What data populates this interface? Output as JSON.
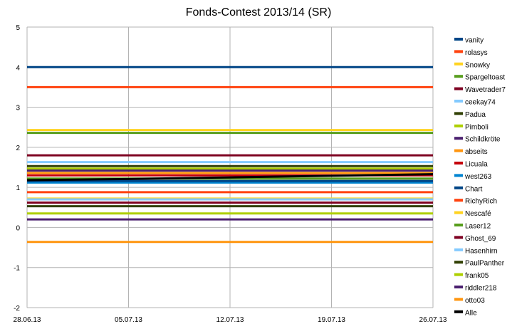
{
  "chart_data": {
    "type": "line",
    "title": "Fonds-Contest 2013/14 (SR)",
    "xlabel": "",
    "ylabel": "",
    "x_ticks": [
      "28.06.13",
      "05.07.13",
      "12.07.13",
      "19.07.13",
      "26.07.13"
    ],
    "ylim": [
      -2,
      5
    ],
    "y_ticks": [
      "-2",
      "-1",
      "0",
      "1",
      "2",
      "3",
      "4",
      "5"
    ],
    "grid": true,
    "legend_position": "right",
    "series": [
      {
        "name": "vanity",
        "color": "#004586",
        "values": [
          4.0,
          4.0,
          4.0,
          4.0,
          4.0
        ]
      },
      {
        "name": "rolasys",
        "color": "#ff420e",
        "values": [
          3.5,
          3.5,
          3.5,
          3.5,
          3.5
        ]
      },
      {
        "name": "Snowky",
        "color": "#ffd320",
        "values": [
          2.43,
          2.43,
          2.43,
          2.43,
          2.43
        ]
      },
      {
        "name": "Spargeltoast",
        "color": "#579d1c",
        "values": [
          2.36,
          2.36,
          2.36,
          2.36,
          2.36
        ]
      },
      {
        "name": "Wavetrader7",
        "color": "#7e0021",
        "values": [
          1.8,
          1.8,
          1.8,
          1.8,
          1.8
        ]
      },
      {
        "name": "ceekay74",
        "color": "#83caff",
        "values": [
          1.63,
          1.63,
          1.63,
          1.63,
          1.63
        ]
      },
      {
        "name": "Padua",
        "color": "#314004",
        "values": [
          1.53,
          1.53,
          1.53,
          1.53,
          1.53
        ]
      },
      {
        "name": "Pimboli",
        "color": "#aecf00",
        "values": [
          1.47,
          1.47,
          1.47,
          1.47,
          1.47
        ]
      },
      {
        "name": "Schildkröte",
        "color": "#4b1f6f",
        "values": [
          1.42,
          1.42,
          1.42,
          1.42,
          1.42
        ]
      },
      {
        "name": "abseits",
        "color": "#ff950e",
        "values": [
          1.36,
          1.36,
          1.36,
          1.36,
          1.36
        ]
      },
      {
        "name": "Licuala",
        "color": "#c5000b",
        "values": [
          1.3,
          1.3,
          1.3,
          1.3,
          1.3
        ]
      },
      {
        "name": "west263",
        "color": "#0084d1",
        "values": [
          1.12,
          1.12,
          1.12,
          1.12,
          1.12
        ]
      },
      {
        "name": "Chart",
        "color": "#004586",
        "values": [
          1.16,
          1.16,
          1.16,
          1.16,
          1.16
        ]
      },
      {
        "name": "RichyRich",
        "color": "#ff420e",
        "values": [
          0.88,
          0.88,
          0.88,
          0.88,
          0.88
        ]
      },
      {
        "name": "Nescafé",
        "color": "#ffd320",
        "values": [
          0.72,
          0.72,
          0.72,
          0.72,
          0.72
        ]
      },
      {
        "name": "Laser12",
        "color": "#579d1c",
        "values": [
          1.22,
          1.22,
          1.22,
          1.22,
          1.22
        ]
      },
      {
        "name": "Ghost_69",
        "color": "#7e0021",
        "values": [
          0.62,
          0.62,
          0.62,
          0.62,
          0.62
        ]
      },
      {
        "name": "Hasenhirn",
        "color": "#83caff",
        "values": [
          0.7,
          0.7,
          0.7,
          0.7,
          0.7
        ]
      },
      {
        "name": "PaulPanther",
        "color": "#314004",
        "values": [
          0.53,
          0.53,
          0.53,
          0.53,
          0.53
        ]
      },
      {
        "name": "frank05",
        "color": "#aecf00",
        "values": [
          0.35,
          0.35,
          0.35,
          0.35,
          0.35
        ]
      },
      {
        "name": "riddler218",
        "color": "#4b1f6f",
        "values": [
          0.2,
          0.2,
          0.2,
          0.2,
          0.2
        ]
      },
      {
        "name": "otto03",
        "color": "#ff950e",
        "values": [
          -0.36,
          -0.36,
          -0.36,
          -0.36,
          -0.36
        ]
      },
      {
        "name": "Alle",
        "color": "#000000",
        "values": [
          1.18,
          1.21,
          1.25,
          1.29,
          1.33
        ]
      }
    ]
  }
}
